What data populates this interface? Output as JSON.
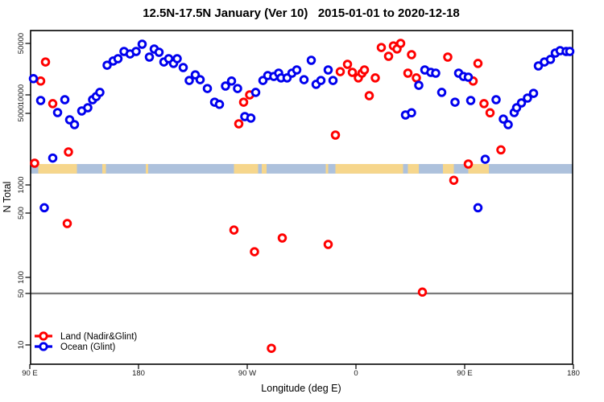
{
  "title": "12.5N-17.5N January (Ver 10)   2015-01-01 to 2020-12-18",
  "axes": {
    "x": {
      "label": "Longitude (deg E)",
      "tick_labels": [
        "90 E",
        "180",
        "90 W",
        "0",
        "90 E",
        "180"
      ],
      "tick_values_deg": [
        90,
        180,
        270,
        360,
        450,
        540
      ]
    },
    "y": {
      "label": "N Total",
      "tick_labels": [
        "50000",
        "10000",
        "5000",
        "1000",
        "500",
        "100",
        "50",
        "10"
      ],
      "tick_values": [
        50000,
        10000,
        5000,
        1000,
        500,
        100,
        50,
        10
      ]
    }
  },
  "reference_line": {
    "value": 50,
    "color": "#7a7a7a"
  },
  "map_band": {
    "description": "coastline strip of latitude band 12.5N-17.5N drawn across plot",
    "ocean_color": "#adc1dc",
    "land_color": "#f6d68c",
    "top_value": 1600,
    "bottom_value": 1290,
    "land_segments_deg": [
      [
        97,
        129
      ],
      [
        150,
        153
      ],
      [
        186,
        188
      ],
      [
        259,
        279
      ],
      [
        282,
        286
      ],
      [
        335,
        337
      ],
      [
        343,
        399
      ],
      [
        403,
        412
      ],
      [
        432,
        441
      ],
      [
        453,
        470
      ]
    ]
  },
  "chart_data": {
    "type": "scatter",
    "title": "12.5N-17.5N January (Ver 10)   2015-01-01 to 2020-12-18",
    "xlabel": "Longitude (deg E)",
    "ylabel": "N Total",
    "x_axis_note": "x is longitude unwrapped from 90E (left) through 180, 90W, 0, 90E to 180 (right); stored as 90..540 deg",
    "yscale": "log",
    "xlim_deg": [
      90,
      540
    ],
    "ylim": [
      9,
      50000
    ],
    "grid": false,
    "legend_position": "bottom-left",
    "series": [
      {
        "name": "Land (Nadir&Glint)",
        "color": "#ff0000",
        "marker": "open-circle",
        "points": [
          [
            103,
            28000
          ],
          [
            99,
            15400
          ],
          [
            109,
            7200
          ],
          [
            122,
            2100
          ],
          [
            94,
            1630
          ],
          [
            263,
            3950
          ],
          [
            267,
            7600
          ],
          [
            272,
            10000
          ],
          [
            343,
            3070
          ],
          [
            347,
            20700
          ],
          [
            353,
            26000
          ],
          [
            357,
            20200
          ],
          [
            362,
            17000
          ],
          [
            365,
            19700
          ],
          [
            367,
            21800
          ],
          [
            371,
            9700
          ],
          [
            376,
            17000
          ],
          [
            381,
            44000
          ],
          [
            387,
            33400
          ],
          [
            391,
            46300
          ],
          [
            394,
            42000
          ],
          [
            397,
            50000
          ],
          [
            403,
            19700
          ],
          [
            406,
            35200
          ],
          [
            410,
            17000
          ],
          [
            436,
            32600
          ],
          [
            441,
            1110
          ],
          [
            453,
            1600
          ],
          [
            457,
            15400
          ],
          [
            461,
            26700
          ],
          [
            466,
            7200
          ],
          [
            471,
            5100
          ],
          [
            480,
            2200
          ],
          [
            121,
            385
          ],
          [
            259,
            327
          ],
          [
            276,
            190
          ],
          [
            299,
            268
          ],
          [
            337,
            228
          ],
          [
            415,
            53
          ],
          [
            290,
            9
          ]
        ]
      },
      {
        "name": "Ocean (Glint)",
        "color": "#0000ee",
        "marker": "open-circle",
        "points": [
          [
            93,
            16600
          ],
          [
            99,
            8100
          ],
          [
            102,
            570
          ],
          [
            109,
            1830
          ],
          [
            113,
            5150
          ],
          [
            119,
            8350
          ],
          [
            123,
            4330
          ],
          [
            127,
            3880
          ],
          [
            133,
            5470
          ],
          [
            138,
            6180
          ],
          [
            142,
            8350
          ],
          [
            145,
            9400
          ],
          [
            148,
            10800
          ],
          [
            154,
            25300
          ],
          [
            159,
            28800
          ],
          [
            163,
            31000
          ],
          [
            168,
            38900
          ],
          [
            173,
            36000
          ],
          [
            178,
            38900
          ],
          [
            183,
            48700
          ],
          [
            189,
            32600
          ],
          [
            193,
            41900
          ],
          [
            197,
            37900
          ],
          [
            201,
            28000
          ],
          [
            205,
            31000
          ],
          [
            209,
            26700
          ],
          [
            212,
            31000
          ],
          [
            217,
            23500
          ],
          [
            222,
            15700
          ],
          [
            227,
            18700
          ],
          [
            231,
            16100
          ],
          [
            237,
            12200
          ],
          [
            243,
            7600
          ],
          [
            247,
            7000
          ],
          [
            252,
            13200
          ],
          [
            257,
            15400
          ],
          [
            262,
            12200
          ],
          [
            268,
            4650
          ],
          [
            273,
            4490
          ],
          [
            277,
            10800
          ],
          [
            283,
            15700
          ],
          [
            287,
            18300
          ],
          [
            292,
            17800
          ],
          [
            296,
            19700
          ],
          [
            298,
            17000
          ],
          [
            303,
            17000
          ],
          [
            307,
            19700
          ],
          [
            311,
            21800
          ],
          [
            317,
            16100
          ],
          [
            323,
            29500
          ],
          [
            327,
            13900
          ],
          [
            331,
            15700
          ],
          [
            337,
            21800
          ],
          [
            341,
            15700
          ],
          [
            401,
            4820
          ],
          [
            406,
            5100
          ],
          [
            412,
            13500
          ],
          [
            417,
            21800
          ],
          [
            422,
            20200
          ],
          [
            426,
            19700
          ],
          [
            431,
            10800
          ],
          [
            442,
            7600
          ],
          [
            445,
            19700
          ],
          [
            449,
            17800
          ],
          [
            453,
            17400
          ],
          [
            455,
            8100
          ],
          [
            461,
            570
          ],
          [
            467,
            1780
          ],
          [
            476,
            8350
          ],
          [
            482,
            4400
          ],
          [
            486,
            3880
          ],
          [
            491,
            5150
          ],
          [
            493,
            6180
          ],
          [
            497,
            7400
          ],
          [
            502,
            8870
          ],
          [
            507,
            10500
          ],
          [
            511,
            24700
          ],
          [
            516,
            28000
          ],
          [
            521,
            30300
          ],
          [
            525,
            37000
          ],
          [
            529,
            39900
          ],
          [
            534,
            38900
          ],
          [
            537,
            38900
          ]
        ]
      }
    ]
  }
}
